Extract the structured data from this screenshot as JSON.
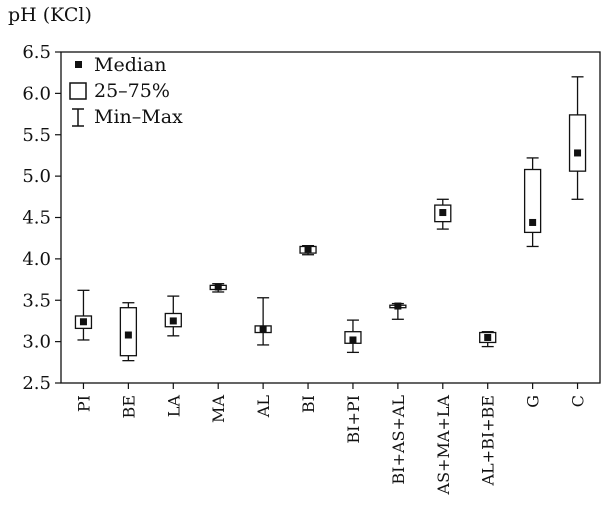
{
  "chart_data": {
    "type": "boxplot",
    "title": "",
    "ylabel": "pH (KCl)",
    "xlabel": "",
    "ylim": [
      2.5,
      6.5
    ],
    "yticks": [
      "2.5",
      "3.0",
      "3.5",
      "4.0",
      "4.5",
      "5.0",
      "5.5",
      "6.0",
      "6.5"
    ],
    "ytick_values": [
      2.5,
      3.0,
      3.5,
      4.0,
      4.5,
      5.0,
      5.5,
      6.0,
      6.5
    ],
    "grid": false,
    "legend": {
      "placement": "top-left",
      "entries": [
        "Median",
        "25–75%",
        "Min–Max"
      ]
    },
    "categories": [
      "PI",
      "BE",
      "LA",
      "MA",
      "AL",
      "BI",
      "BI+PI",
      "BI+AS+AL",
      "AS+MA+LA",
      "AL+BI+BE",
      "G",
      "C"
    ],
    "boxes": [
      {
        "min": 3.02,
        "q1": 3.16,
        "median": 3.24,
        "q3": 3.31,
        "max": 3.62
      },
      {
        "min": 2.77,
        "q1": 2.83,
        "median": 3.08,
        "q3": 3.41,
        "max": 3.47
      },
      {
        "min": 3.07,
        "q1": 3.18,
        "median": 3.25,
        "q3": 3.34,
        "max": 3.55
      },
      {
        "min": 3.6,
        "q1": 3.63,
        "median": 3.66,
        "q3": 3.68,
        "max": 3.7
      },
      {
        "min": 2.96,
        "q1": 3.11,
        "median": 3.15,
        "q3": 3.19,
        "max": 3.53
      },
      {
        "min": 4.05,
        "q1": 4.07,
        "median": 4.12,
        "q3": 4.15,
        "max": 4.16
      },
      {
        "min": 2.87,
        "q1": 2.98,
        "median": 3.02,
        "q3": 3.12,
        "max": 3.26
      },
      {
        "min": 3.27,
        "q1": 3.41,
        "median": 3.43,
        "q3": 3.44,
        "max": 3.46
      },
      {
        "min": 4.36,
        "q1": 4.45,
        "median": 4.56,
        "q3": 4.65,
        "max": 4.72
      },
      {
        "min": 2.94,
        "q1": 2.99,
        "median": 3.05,
        "q3": 3.11,
        "max": 3.12
      },
      {
        "min": 4.15,
        "q1": 4.32,
        "median": 4.44,
        "q3": 5.08,
        "max": 5.22
      },
      {
        "min": 4.72,
        "q1": 5.06,
        "median": 5.28,
        "q3": 5.74,
        "max": 6.2
      }
    ]
  }
}
